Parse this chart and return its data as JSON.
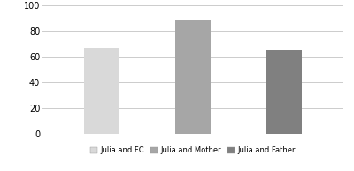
{
  "categories": [
    "Julia and FC",
    "Julia and Mother",
    "Julia and Father"
  ],
  "values": [
    67,
    88,
    65
  ],
  "bar_colors": [
    "#d9d9d9",
    "#a6a6a6",
    "#808080"
  ],
  "ylim": [
    0,
    100
  ],
  "yticks": [
    0,
    20,
    40,
    60,
    80,
    100
  ],
  "background_color": "#ffffff",
  "legend_labels": [
    "Julia and FC",
    "Julia and Mother",
    "Julia and Father"
  ],
  "bar_width": 0.38,
  "edge_color": "none",
  "figsize": [
    4.0,
    1.93
  ],
  "dpi": 100
}
